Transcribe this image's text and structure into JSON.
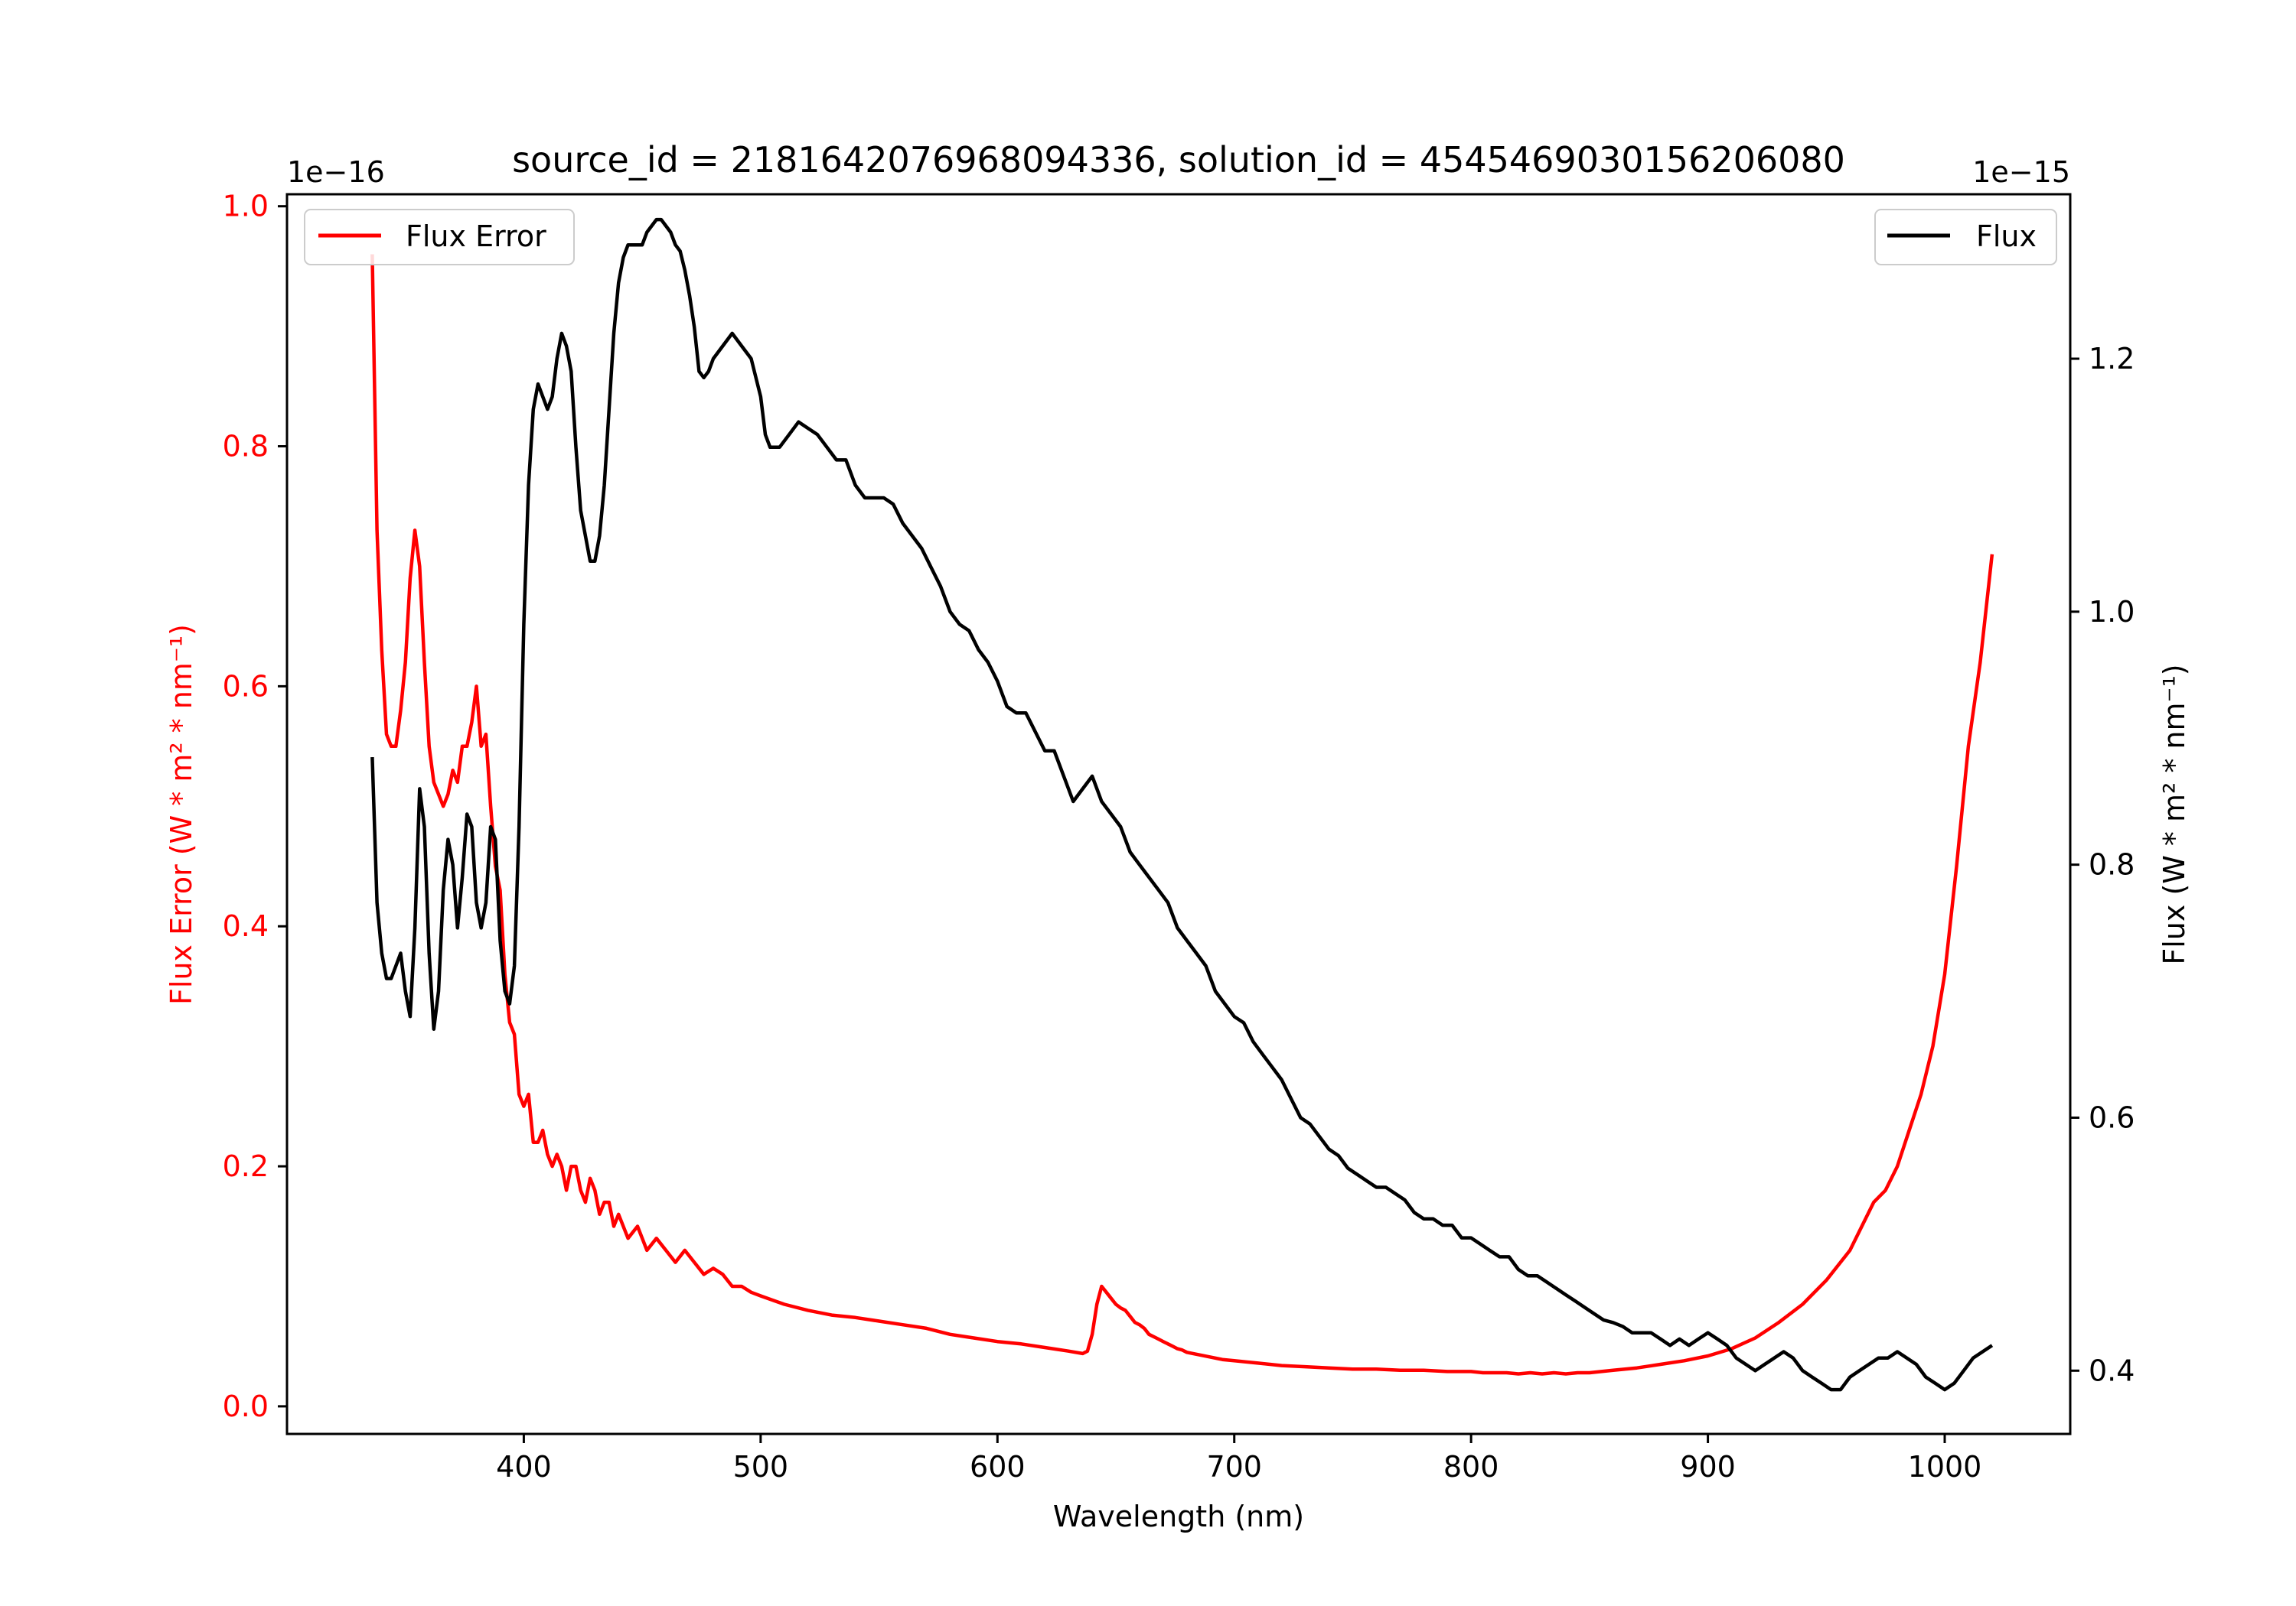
{
  "chart_data": {
    "type": "line",
    "title": "source_id = 2181642076968094336, solution_id = 4545469030156206080",
    "xlabel": "Wavelength (nm)",
    "xlim": [
      300,
      1053
    ],
    "x_ticks": [
      400,
      500,
      600,
      700,
      800,
      900,
      1000
    ],
    "colors": {
      "flux": "#000000",
      "flux_error": "#ff0000",
      "axes": "#000000"
    },
    "left_axis": {
      "label": "Flux Error (W * m² * nm⁻¹)",
      "offset_text": "1e−16",
      "ylim": [
        -0.023,
        1.01
      ],
      "ticks": [
        0.0,
        0.2,
        0.4,
        0.6,
        0.8,
        1.0
      ],
      "tick_labels": [
        "0.0",
        "0.2",
        "0.4",
        "0.6",
        "0.8",
        "1.0"
      ],
      "color": "#ff0000"
    },
    "right_axis": {
      "label": "Flux (W * m² * nm⁻¹)",
      "offset_text": "1e−15",
      "ylim": [
        0.35,
        1.33
      ],
      "ticks": [
        0.4,
        0.6,
        0.8,
        1.0,
        1.2
      ],
      "tick_labels": [
        "0.4",
        "0.6",
        "0.8",
        "1.0",
        "1.2"
      ],
      "color": "#000000"
    },
    "legends": [
      {
        "label": "Flux Error",
        "placement": "upper-left",
        "color": "#ff0000"
      },
      {
        "label": "Flux",
        "placement": "upper-right",
        "color": "#000000"
      }
    ],
    "series": [
      {
        "name": "Flux Error",
        "axis": "left",
        "color": "#ff0000",
        "x": [
          336,
          338,
          340,
          342,
          344,
          346,
          348,
          350,
          352,
          354,
          356,
          358,
          360,
          362,
          364,
          366,
          368,
          370,
          372,
          374,
          376,
          378,
          380,
          382,
          384,
          386,
          388,
          390,
          392,
          394,
          396,
          398,
          400,
          402,
          404,
          406,
          408,
          410,
          412,
          414,
          416,
          418,
          420,
          422,
          424,
          426,
          428,
          430,
          432,
          434,
          436,
          438,
          440,
          444,
          448,
          452,
          456,
          460,
          464,
          468,
          472,
          476,
          480,
          484,
          488,
          492,
          496,
          500,
          510,
          520,
          530,
          540,
          550,
          560,
          570,
          580,
          590,
          600,
          610,
          620,
          630,
          636,
          638,
          640,
          642,
          644,
          646,
          648,
          650,
          652,
          654,
          656,
          658,
          660,
          662,
          664,
          666,
          668,
          670,
          672,
          674,
          676,
          678,
          680,
          685,
          690,
          695,
          700,
          710,
          720,
          730,
          740,
          750,
          760,
          770,
          780,
          790,
          800,
          805,
          810,
          815,
          820,
          825,
          830,
          835,
          840,
          845,
          850,
          860,
          870,
          880,
          890,
          900,
          910,
          920,
          930,
          940,
          950,
          960,
          970,
          975,
          980,
          985,
          990,
          995,
          1000,
          1005,
          1010,
          1015,
          1020
        ],
        "values": [
          0.96,
          0.73,
          0.63,
          0.56,
          0.55,
          0.55,
          0.58,
          0.62,
          0.69,
          0.73,
          0.7,
          0.62,
          0.55,
          0.52,
          0.51,
          0.5,
          0.51,
          0.53,
          0.52,
          0.55,
          0.55,
          0.57,
          0.6,
          0.55,
          0.56,
          0.5,
          0.45,
          0.43,
          0.36,
          0.32,
          0.31,
          0.26,
          0.25,
          0.26,
          0.22,
          0.22,
          0.23,
          0.21,
          0.2,
          0.21,
          0.2,
          0.18,
          0.2,
          0.2,
          0.18,
          0.17,
          0.19,
          0.18,
          0.16,
          0.17,
          0.17,
          0.15,
          0.16,
          0.14,
          0.15,
          0.13,
          0.14,
          0.13,
          0.12,
          0.13,
          0.12,
          0.11,
          0.115,
          0.11,
          0.1,
          0.1,
          0.095,
          0.092,
          0.085,
          0.08,
          0.076,
          0.074,
          0.071,
          0.068,
          0.065,
          0.06,
          0.057,
          0.054,
          0.052,
          0.049,
          0.046,
          0.044,
          0.046,
          0.06,
          0.085,
          0.1,
          0.095,
          0.09,
          0.085,
          0.082,
          0.08,
          0.075,
          0.07,
          0.068,
          0.065,
          0.06,
          0.058,
          0.056,
          0.054,
          0.052,
          0.05,
          0.048,
          0.047,
          0.045,
          0.043,
          0.041,
          0.039,
          0.038,
          0.036,
          0.034,
          0.033,
          0.032,
          0.031,
          0.031,
          0.03,
          0.03,
          0.029,
          0.029,
          0.028,
          0.028,
          0.028,
          0.027,
          0.028,
          0.027,
          0.028,
          0.027,
          0.028,
          0.028,
          0.03,
          0.032,
          0.035,
          0.038,
          0.042,
          0.048,
          0.057,
          0.07,
          0.085,
          0.105,
          0.13,
          0.17,
          0.18,
          0.2,
          0.23,
          0.26,
          0.3,
          0.36,
          0.45,
          0.55,
          0.62,
          0.71
        ]
      },
      {
        "name": "Flux",
        "axis": "right",
        "color": "#000000",
        "x": [
          336,
          338,
          340,
          342,
          344,
          346,
          348,
          350,
          352,
          354,
          356,
          358,
          360,
          362,
          364,
          366,
          368,
          370,
          372,
          374,
          376,
          378,
          380,
          382,
          384,
          386,
          388,
          390,
          392,
          394,
          396,
          398,
          400,
          402,
          404,
          406,
          408,
          410,
          412,
          414,
          416,
          418,
          420,
          422,
          424,
          426,
          428,
          430,
          432,
          434,
          436,
          438,
          440,
          442,
          444,
          446,
          448,
          450,
          452,
          454,
          456,
          458,
          460,
          462,
          464,
          466,
          468,
          470,
          472,
          474,
          476,
          478,
          480,
          484,
          488,
          492,
          496,
          500,
          502,
          504,
          508,
          512,
          516,
          520,
          524,
          528,
          532,
          536,
          540,
          544,
          548,
          552,
          556,
          560,
          564,
          568,
          572,
          576,
          580,
          584,
          588,
          592,
          596,
          600,
          604,
          608,
          612,
          616,
          620,
          624,
          628,
          632,
          636,
          640,
          644,
          648,
          652,
          656,
          660,
          664,
          668,
          672,
          676,
          680,
          684,
          688,
          692,
          696,
          700,
          704,
          708,
          712,
          716,
          720,
          724,
          728,
          732,
          736,
          740,
          744,
          748,
          752,
          756,
          760,
          764,
          768,
          772,
          776,
          780,
          784,
          788,
          792,
          796,
          800,
          804,
          808,
          812,
          816,
          820,
          824,
          828,
          832,
          836,
          840,
          844,
          848,
          852,
          856,
          860,
          864,
          868,
          872,
          876,
          880,
          884,
          888,
          892,
          896,
          900,
          904,
          908,
          912,
          916,
          920,
          924,
          928,
          932,
          936,
          940,
          944,
          948,
          952,
          956,
          960,
          964,
          968,
          972,
          976,
          980,
          984,
          988,
          992,
          996,
          1000,
          1004,
          1008,
          1012,
          1016,
          1020
        ],
        "values": [
          0.885,
          0.77,
          0.73,
          0.71,
          0.71,
          0.72,
          0.73,
          0.7,
          0.68,
          0.75,
          0.86,
          0.83,
          0.73,
          0.67,
          0.7,
          0.78,
          0.82,
          0.8,
          0.75,
          0.79,
          0.84,
          0.83,
          0.77,
          0.75,
          0.77,
          0.83,
          0.82,
          0.74,
          0.7,
          0.69,
          0.72,
          0.83,
          0.99,
          1.1,
          1.16,
          1.18,
          1.17,
          1.16,
          1.17,
          1.2,
          1.22,
          1.21,
          1.19,
          1.13,
          1.08,
          1.06,
          1.04,
          1.04,
          1.06,
          1.1,
          1.16,
          1.22,
          1.26,
          1.28,
          1.29,
          1.29,
          1.29,
          1.29,
          1.3,
          1.305,
          1.31,
          1.31,
          1.305,
          1.3,
          1.29,
          1.285,
          1.27,
          1.25,
          1.225,
          1.19,
          1.185,
          1.19,
          1.2,
          1.21,
          1.22,
          1.21,
          1.2,
          1.17,
          1.14,
          1.13,
          1.13,
          1.14,
          1.15,
          1.145,
          1.14,
          1.13,
          1.12,
          1.12,
          1.1,
          1.09,
          1.09,
          1.09,
          1.085,
          1.07,
          1.06,
          1.05,
          1.035,
          1.02,
          1.0,
          0.99,
          0.985,
          0.97,
          0.96,
          0.945,
          0.925,
          0.92,
          0.92,
          0.905,
          0.89,
          0.89,
          0.87,
          0.85,
          0.86,
          0.87,
          0.85,
          0.84,
          0.83,
          0.81,
          0.8,
          0.79,
          0.78,
          0.77,
          0.75,
          0.74,
          0.73,
          0.72,
          0.7,
          0.69,
          0.68,
          0.675,
          0.66,
          0.65,
          0.64,
          0.63,
          0.615,
          0.6,
          0.595,
          0.585,
          0.575,
          0.57,
          0.56,
          0.555,
          0.55,
          0.545,
          0.545,
          0.54,
          0.535,
          0.525,
          0.52,
          0.52,
          0.515,
          0.515,
          0.505,
          0.505,
          0.5,
          0.495,
          0.49,
          0.49,
          0.48,
          0.475,
          0.475,
          0.47,
          0.465,
          0.46,
          0.455,
          0.45,
          0.445,
          0.44,
          0.438,
          0.435,
          0.43,
          0.43,
          0.43,
          0.425,
          0.42,
          0.425,
          0.42,
          0.425,
          0.43,
          0.425,
          0.42,
          0.41,
          0.405,
          0.4,
          0.405,
          0.41,
          0.415,
          0.41,
          0.4,
          0.395,
          0.39,
          0.385,
          0.385,
          0.395,
          0.4,
          0.405,
          0.41,
          0.41,
          0.415,
          0.41,
          0.405,
          0.395,
          0.39,
          0.385,
          0.39,
          0.4,
          0.41,
          0.415,
          0.42
        ]
      }
    ]
  }
}
